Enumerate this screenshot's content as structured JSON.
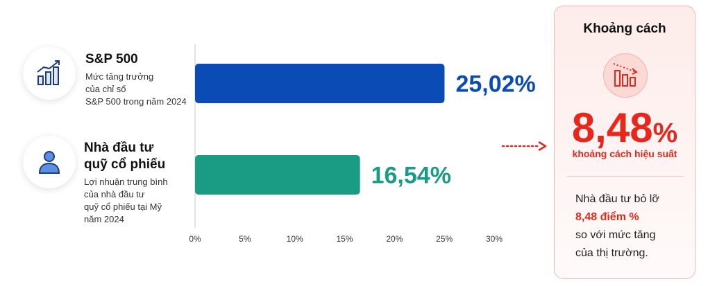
{
  "chart_data": {
    "type": "bar",
    "orientation": "horizontal",
    "categories": [
      "S&P 500",
      "Nhà đầu tư quỹ cổ phiếu"
    ],
    "values": [
      25.02,
      16.54
    ],
    "value_labels": [
      "25,02%",
      "16,54%"
    ],
    "xlim": [
      0,
      30
    ],
    "xticks": [
      "0%",
      "5%",
      "10%",
      "15%",
      "20%",
      "25%",
      "30%"
    ],
    "colors": [
      "#0a4bb5",
      "#1a9b84"
    ],
    "grid": false
  },
  "labels": {
    "sp": {
      "title": "S&P 500",
      "desc": [
        "Mức tăng trưởng",
        "của chỉ số",
        "S&P 500 trong năm 2024"
      ]
    },
    "investor": {
      "title": [
        "Nhà đầu tư",
        "quỹ cổ phiếu"
      ],
      "desc": [
        "Lợi nhuận trung bình",
        "của nhà đầu tư",
        "quỹ cổ phiếu tại Mỹ",
        "năm 2024"
      ]
    }
  },
  "icons": {
    "sp": "bar-chart-growth-icon",
    "investor": "person-icon",
    "gap": "declining-bars-icon",
    "arrow": "dotted-arrow-right-icon"
  },
  "gap": {
    "title": "Khoảng cách",
    "value": "8,48",
    "value_unit": "%",
    "subtitle": "khoảng cách hiệu suất",
    "note_line1": "Nhà đầu tư bỏ lỡ",
    "note_highlight": "8,48 điểm %",
    "note_line3": "so với mức tăng",
    "note_line4": "của thị trường."
  },
  "colors": {
    "accent_red": "#e8271c",
    "sp_blue": "#0a4bb5",
    "investor_teal": "#1a9b84"
  }
}
